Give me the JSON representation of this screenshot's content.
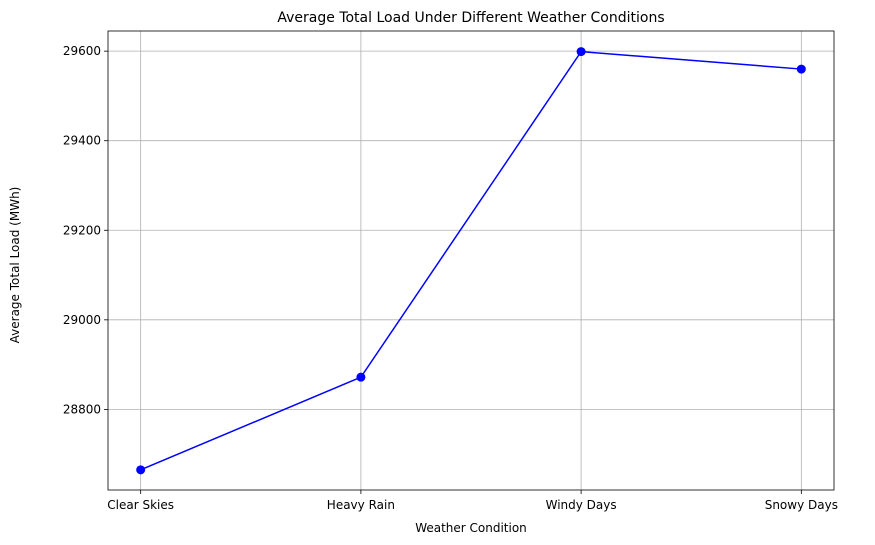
{
  "chart_data": {
    "type": "line",
    "title": "Average Total Load Under Different Weather Conditions",
    "xlabel": "Weather Condition",
    "ylabel": "Average Total Load (MWh)",
    "categories": [
      "Clear Skies",
      "Heavy Rain",
      "Windy Days",
      "Snowy Days"
    ],
    "series": [
      {
        "values": [
          28665,
          28872,
          29599,
          29560
        ],
        "color": "#0000ff",
        "marker": "circle"
      }
    ],
    "yticks": [
      28800,
      29000,
      29200,
      29400,
      29600
    ],
    "ylim": [
      28620,
      29645
    ],
    "grid": true,
    "legend": "none"
  }
}
